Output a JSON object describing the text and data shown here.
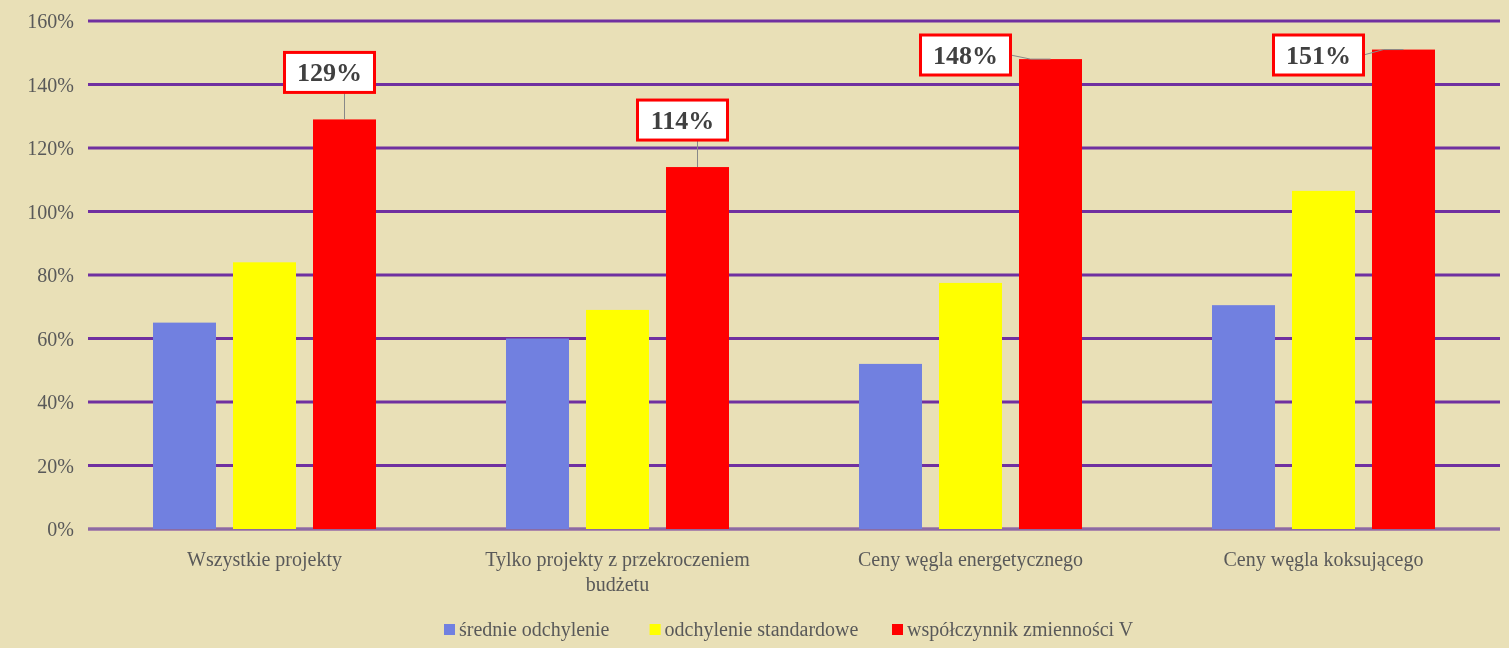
{
  "chart_data": {
    "type": "bar",
    "categories": [
      "Wszystkie projekty",
      "Tylko projekty z przekroczeniem budżetu",
      "Ceny węgla energetycznego",
      "Ceny węgla koksującego"
    ],
    "series": [
      {
        "name": "średnie odchylenie",
        "color": "#7180e0",
        "values": [
          65,
          60,
          52,
          70.5
        ]
      },
      {
        "name": "odchylenie standardowe",
        "color": "#ffff00",
        "values": [
          84,
          69,
          77.5,
          106.5
        ]
      },
      {
        "name": "współczynnik zmienności V",
        "color": "#ff0000",
        "values": [
          129,
          114,
          148,
          151
        ],
        "value_labels": [
          "129%",
          "114%",
          "148%",
          "151%"
        ]
      }
    ],
    "ylim": [
      0,
      160
    ],
    "yticks": [
      {
        "value": 0,
        "label": "0%"
      },
      {
        "value": 20,
        "label": "20%"
      },
      {
        "value": 40,
        "label": "40%"
      },
      {
        "value": 60,
        "label": "60%"
      },
      {
        "value": 80,
        "label": "80%"
      },
      {
        "value": 100,
        "label": "100%"
      },
      {
        "value": 120,
        "label": "120%"
      },
      {
        "value": 140,
        "label": "140%"
      },
      {
        "value": 160,
        "label": "160%"
      }
    ],
    "grid": "y",
    "legend": "bottom"
  }
}
